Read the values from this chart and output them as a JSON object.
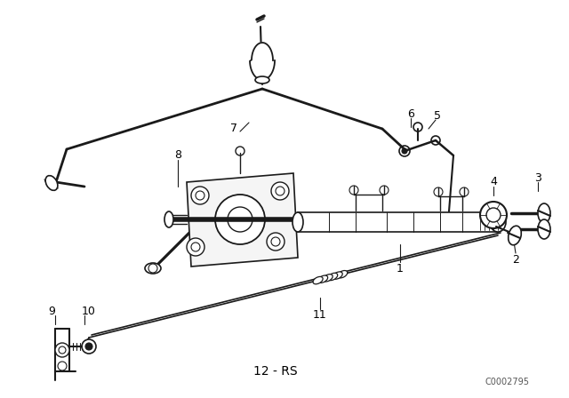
{
  "bg_color": "#ffffff",
  "line_color": "#1a1a1a",
  "watermark": "C0002795",
  "bottom_label": "12 - RS",
  "figsize": [
    6.4,
    4.48
  ],
  "dpi": 100
}
